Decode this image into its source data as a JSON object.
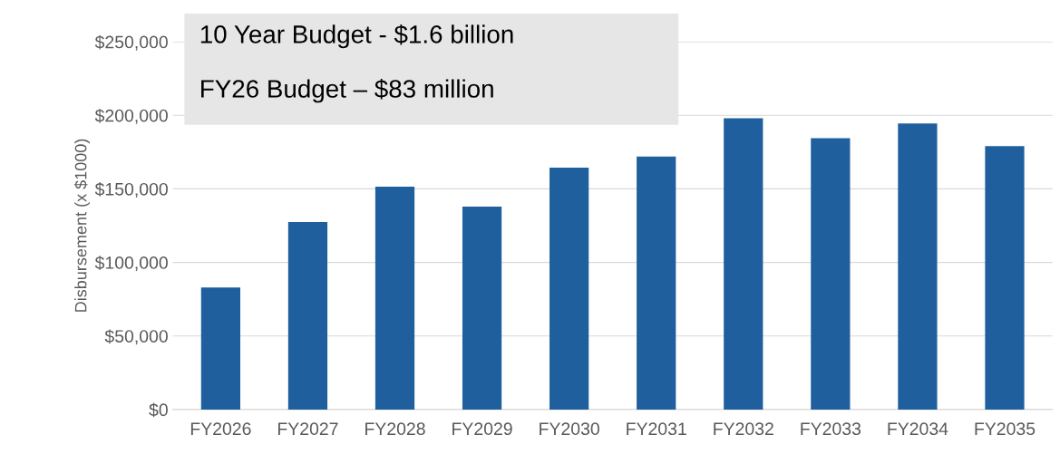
{
  "chart_data": {
    "type": "bar",
    "categories": [
      "FY2026",
      "FY2027",
      "FY2028",
      "FY2029",
      "FY2030",
      "FY2031",
      "FY2032",
      "FY2033",
      "FY2034",
      "FY2035"
    ],
    "values": [
      83000,
      127500,
      151500,
      138000,
      164500,
      172000,
      198000,
      184500,
      194500,
      179000
    ],
    "color": "#1f5f9e",
    "ylabel": "Disbursement (x $1000)",
    "ylim": [
      0,
      250000
    ],
    "yticks": [
      {
        "value": 0,
        "label": "$0"
      },
      {
        "value": 50000,
        "label": "$50,000"
      },
      {
        "value": 100000,
        "label": "$100,000"
      },
      {
        "value": 150000,
        "label": "$150,000"
      },
      {
        "value": 200000,
        "label": "$200,000"
      },
      {
        "value": 250000,
        "label": "$250,000"
      }
    ],
    "grid": "y",
    "annotations": [
      "10 Year Budget - $1.6 billion",
      "FY26 Budget – $83 million"
    ]
  }
}
